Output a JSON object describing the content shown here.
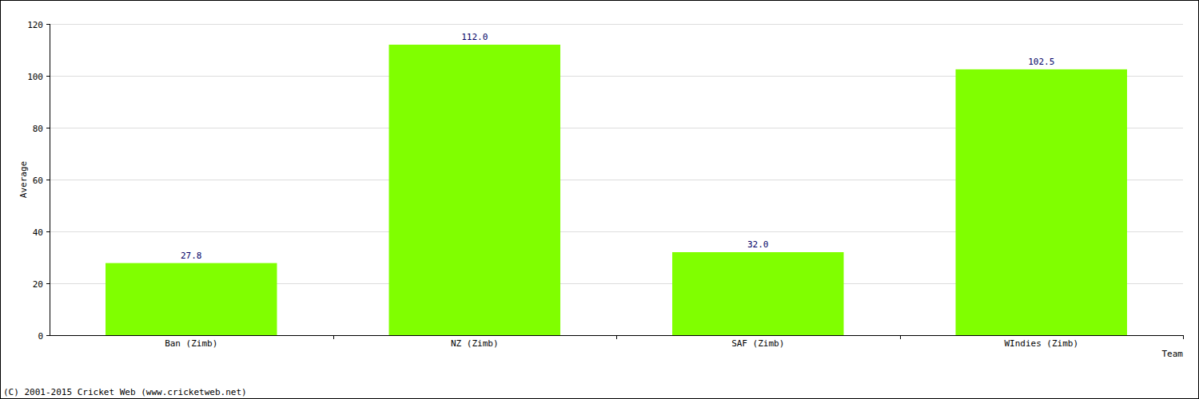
{
  "chart_data": {
    "type": "bar",
    "x_label": "Team",
    "y_label": "Average",
    "categories": [
      "Ban (Zimb)",
      "NZ (Zimb)",
      "SAF (Zimb)",
      "WIndies (Zimb)"
    ],
    "values": [
      27.8,
      112,
      32,
      102.5
    ],
    "value_labels": [
      "27.8",
      "112.0",
      "32.0",
      "102.5"
    ],
    "color": "#80ff00",
    "ylim": [
      0,
      120
    ],
    "yticks": [
      0,
      20,
      40,
      60,
      80,
      100,
      120
    ],
    "grid": true,
    "data_labels": true,
    "annotations": [
      "(C) 2001-2015 Cricket Web (www.cricketweb.net)"
    ]
  }
}
